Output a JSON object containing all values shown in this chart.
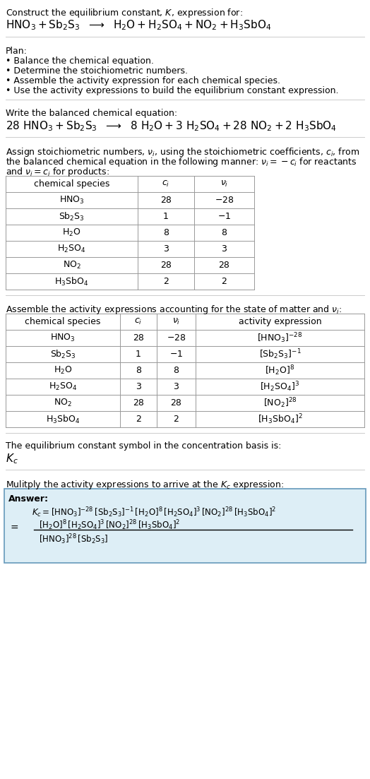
{
  "title_line1": "Construct the equilibrium constant, $K$, expression for:",
  "title_line2_plain": "HNO",
  "section1_header": "Plan:",
  "section1_bullets": [
    "• Balance the chemical equation.",
    "• Determine the stoichiometric numbers.",
    "• Assemble the activity expression for each chemical species.",
    "• Use the activity expressions to build the equilibrium constant expression."
  ],
  "section2_header": "Write the balanced chemical equation:",
  "section3_header_line1": "Assign stoichiometric numbers, $\\nu_i$, using the stoichiometric coefficients, $c_i$, from",
  "section3_header_line2": "the balanced chemical equation in the following manner: $\\nu_i = -c_i$ for reactants",
  "section3_header_line3": "and $\\nu_i = c_i$ for products:",
  "table1_headers": [
    "chemical species",
    "$c_i$",
    "$\\nu_i$"
  ],
  "table1_rows": [
    [
      "$\\mathrm{HNO_3}$",
      "28",
      "$-28$"
    ],
    [
      "$\\mathrm{Sb_2S_3}$",
      "1",
      "$-1$"
    ],
    [
      "$\\mathrm{H_2O}$",
      "8",
      "8"
    ],
    [
      "$\\mathrm{H_2SO_4}$",
      "3",
      "3"
    ],
    [
      "$\\mathrm{NO_2}$",
      "28",
      "28"
    ],
    [
      "$\\mathrm{H_3SbO_4}$",
      "2",
      "2"
    ]
  ],
  "section4_header": "Assemble the activity expressions accounting for the state of matter and $\\nu_i$:",
  "table2_headers": [
    "chemical species",
    "$c_i$",
    "$\\nu_i$",
    "activity expression"
  ],
  "table2_rows": [
    [
      "$\\mathrm{HNO_3}$",
      "28",
      "$-28$",
      "$[\\mathrm{HNO_3}]^{-28}$"
    ],
    [
      "$\\mathrm{Sb_2S_3}$",
      "1",
      "$-1$",
      "$[\\mathrm{Sb_2S_3}]^{-1}$"
    ],
    [
      "$\\mathrm{H_2O}$",
      "8",
      "8",
      "$[\\mathrm{H_2O}]^{8}$"
    ],
    [
      "$\\mathrm{H_2SO_4}$",
      "3",
      "3",
      "$[\\mathrm{H_2SO_4}]^{3}$"
    ],
    [
      "$\\mathrm{NO_2}$",
      "28",
      "28",
      "$[\\mathrm{NO_2}]^{28}$"
    ],
    [
      "$\\mathrm{H_3SbO_4}$",
      "2",
      "2",
      "$[\\mathrm{H_3SbO_4}]^{2}$"
    ]
  ],
  "section5_line1": "The equilibrium constant symbol in the concentration basis is:",
  "section5_symbol": "$K_c$",
  "section6_header": "Mulitply the activity expressions to arrive at the $K_c$ expression:",
  "answer_label": "Answer:",
  "bg_color": "#ffffff",
  "text_color": "#000000",
  "table_border_color": "#999999",
  "answer_box_fill": "#ddeef6",
  "answer_box_border": "#6699bb",
  "sep_line_color": "#cccccc"
}
